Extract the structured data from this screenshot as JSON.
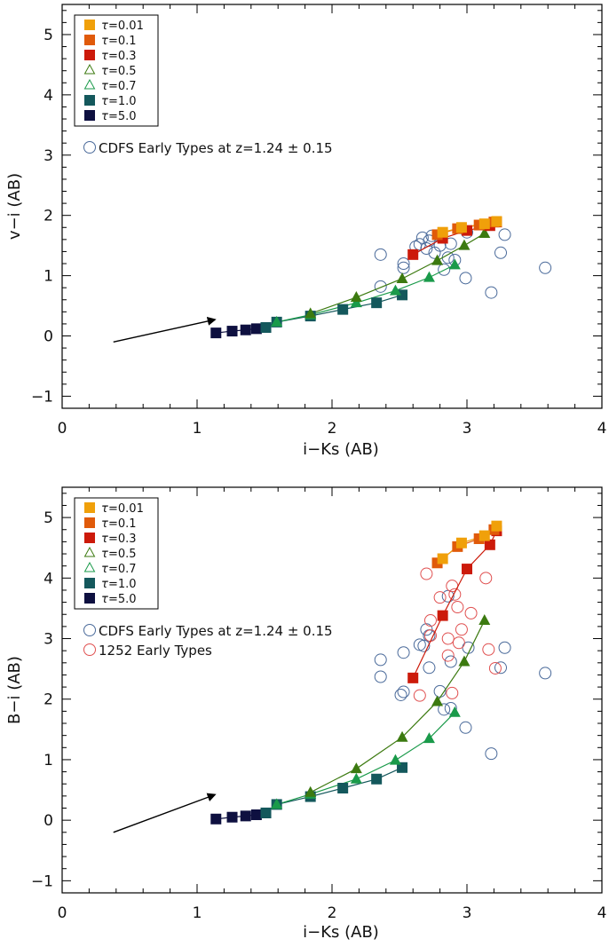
{
  "chart_data": [
    {
      "type": "scatter",
      "panel": "top",
      "xlabel": "i−Ks (AB)",
      "ylabel": "v−i (AB)",
      "xlim": [
        0,
        4
      ],
      "ylim": [
        -1.2,
        5.5
      ],
      "xticks": [
        0,
        1,
        2,
        3,
        4
      ],
      "yticks": [
        -1,
        0,
        1,
        2,
        3,
        4,
        5
      ],
      "legend": [
        {
          "symbol": "τ",
          "label": " =0.01",
          "color": "#f0a00a",
          "marker": "square"
        },
        {
          "symbol": "τ",
          "label": " =0.1",
          "color": "#e05a0a",
          "marker": "square"
        },
        {
          "symbol": "τ",
          "label": " =0.3",
          "color": "#cc1a0a",
          "marker": "square"
        },
        {
          "symbol": "τ",
          "label": " =0.5",
          "color": "#3c7a10",
          "marker": "triangle-open"
        },
        {
          "symbol": "τ",
          "label": " =0.7",
          "color": "#1a9a4a",
          "marker": "triangle-open"
        },
        {
          "symbol": "τ",
          "label": " =1.0",
          "color": "#14585c",
          "marker": "square"
        },
        {
          "symbol": "τ",
          "label": " =5.0",
          "color": "#0e1040",
          "marker": "square"
        }
      ],
      "obs_legend": [
        {
          "label": "CDFS Early Types at z=1.24 ± 0.15",
          "color": "#4a6a9a"
        }
      ],
      "arrow": {
        "from": [
          0.38,
          -0.1
        ],
        "to": [
          1.13,
          0.27
        ]
      },
      "model_tracks": [
        {
          "name": "tau=5.0",
          "color": "#0e1040",
          "marker": "square",
          "x": [
            1.14,
            1.26,
            1.36,
            1.44,
            1.51
          ],
          "y": [
            0.05,
            0.08,
            0.1,
            0.12,
            0.14
          ]
        },
        {
          "name": "tau=1.0",
          "color": "#14585c",
          "marker": "square",
          "x": [
            1.51,
            1.59,
            1.84,
            2.08,
            2.33,
            2.52
          ],
          "y": [
            0.14,
            0.23,
            0.33,
            0.44,
            0.55,
            0.68
          ]
        },
        {
          "name": "tau=0.7",
          "color": "#1a9a4a",
          "marker": "triangle",
          "x": [
            1.59,
            1.84,
            2.18,
            2.47,
            2.72,
            2.91
          ],
          "y": [
            0.23,
            0.35,
            0.55,
            0.75,
            0.97,
            1.18
          ]
        },
        {
          "name": "tau=0.5",
          "color": "#3c7a10",
          "marker": "triangle",
          "x": [
            1.84,
            2.18,
            2.52,
            2.78,
            2.98,
            3.13
          ],
          "y": [
            0.37,
            0.64,
            0.95,
            1.25,
            1.5,
            1.7
          ]
        },
        {
          "name": "tau=0.3",
          "color": "#cc1a0a",
          "marker": "square",
          "x": [
            2.6,
            2.82,
            3.0,
            3.17,
            3.22
          ],
          "y": [
            1.35,
            1.62,
            1.75,
            1.83,
            1.89
          ]
        },
        {
          "name": "tau=0.1",
          "color": "#e05a0a",
          "marker": "square",
          "x": [
            2.78,
            2.93,
            3.09,
            3.2
          ],
          "y": [
            1.68,
            1.78,
            1.84,
            1.89
          ]
        },
        {
          "name": "tau=0.01",
          "color": "#f0a00a",
          "marker": "square",
          "x": [
            2.82,
            2.96,
            3.13,
            3.22
          ],
          "y": [
            1.72,
            1.8,
            1.86,
            1.9
          ]
        }
      ],
      "observed": [
        {
          "name": "CDFS Early Types",
          "color": "#4a6a9a",
          "x": [
            2.36,
            2.53,
            2.53,
            2.65,
            2.67,
            2.7,
            2.72,
            2.76,
            2.8,
            2.83,
            2.88,
            2.91,
            2.99,
            3.0,
            3.18,
            3.25,
            3.28,
            3.58,
            2.36,
            2.62,
            2.74,
            2.86
          ],
          "y": [
            1.35,
            1.2,
            1.13,
            1.52,
            1.63,
            1.45,
            1.58,
            1.38,
            1.5,
            1.1,
            1.53,
            1.26,
            0.96,
            1.72,
            0.72,
            1.38,
            1.68,
            1.13,
            0.82,
            1.48,
            1.66,
            1.3
          ]
        }
      ]
    },
    {
      "type": "scatter",
      "panel": "bottom",
      "xlabel": "i−Ks (AB)",
      "ylabel": "B−i (AB)",
      "xlim": [
        0,
        4
      ],
      "ylim": [
        -1.2,
        5.5
      ],
      "xticks": [
        0,
        1,
        2,
        3,
        4
      ],
      "yticks": [
        -1,
        0,
        1,
        2,
        3,
        4,
        5
      ],
      "legend": [
        {
          "symbol": "τ",
          "label": " =0.01",
          "color": "#f0a00a",
          "marker": "square"
        },
        {
          "symbol": "τ",
          "label": " =0.1",
          "color": "#e05a0a",
          "marker": "square"
        },
        {
          "symbol": "τ",
          "label": " =0.3",
          "color": "#cc1a0a",
          "marker": "square"
        },
        {
          "symbol": "τ",
          "label": " =0.5",
          "color": "#3c7a10",
          "marker": "triangle-open"
        },
        {
          "symbol": "τ",
          "label": " =0.7",
          "color": "#1a9a4a",
          "marker": "triangle-open"
        },
        {
          "symbol": "τ",
          "label": " =1.0",
          "color": "#14585c",
          "marker": "square"
        },
        {
          "symbol": "τ",
          "label": " =5.0",
          "color": "#0e1040",
          "marker": "square"
        }
      ],
      "obs_legend": [
        {
          "label": "CDFS Early Types at z=1.24 ± 0.15",
          "color": "#4a6a9a"
        },
        {
          "label": "1252 Early Types",
          "color": "#e05050"
        }
      ],
      "arrow": {
        "from": [
          0.38,
          -0.2
        ],
        "to": [
          1.13,
          0.42
        ]
      },
      "model_tracks": [
        {
          "name": "tau=5.0",
          "color": "#0e1040",
          "marker": "square",
          "x": [
            1.14,
            1.26,
            1.36,
            1.44,
            1.51
          ],
          "y": [
            0.02,
            0.05,
            0.07,
            0.09,
            0.12
          ]
        },
        {
          "name": "tau=1.0",
          "color": "#14585c",
          "marker": "square",
          "x": [
            1.51,
            1.59,
            1.84,
            2.08,
            2.33,
            2.52
          ],
          "y": [
            0.12,
            0.26,
            0.39,
            0.53,
            0.68,
            0.87
          ]
        },
        {
          "name": "tau=0.7",
          "color": "#1a9a4a",
          "marker": "triangle",
          "x": [
            1.59,
            1.84,
            2.18,
            2.47,
            2.72,
            2.91
          ],
          "y": [
            0.26,
            0.43,
            0.68,
            0.99,
            1.35,
            1.78
          ]
        },
        {
          "name": "tau=0.5",
          "color": "#3c7a10",
          "marker": "triangle",
          "x": [
            1.84,
            2.18,
            2.52,
            2.78,
            2.98,
            3.13
          ],
          "y": [
            0.46,
            0.85,
            1.37,
            1.96,
            2.62,
            3.3
          ]
        },
        {
          "name": "tau=0.3",
          "color": "#cc1a0a",
          "marker": "square",
          "x": [
            2.6,
            2.82,
            3.0,
            3.17,
            3.22
          ],
          "y": [
            2.35,
            3.38,
            4.15,
            4.55,
            4.78
          ]
        },
        {
          "name": "tau=0.1",
          "color": "#e05a0a",
          "marker": "square",
          "x": [
            2.78,
            2.93,
            3.09,
            3.2
          ],
          "y": [
            4.25,
            4.52,
            4.65,
            4.8
          ]
        },
        {
          "name": "tau=0.01",
          "color": "#f0a00a",
          "marker": "square",
          "x": [
            2.82,
            2.96,
            3.13,
            3.22
          ],
          "y": [
            4.32,
            4.58,
            4.7,
            4.86
          ]
        }
      ],
      "observed": [
        {
          "name": "CDFS Early Types",
          "color": "#4a6a9a",
          "x": [
            2.36,
            2.36,
            2.53,
            2.53,
            2.51,
            2.65,
            2.7,
            2.72,
            2.72,
            2.8,
            2.83,
            2.86,
            2.88,
            2.99,
            3.01,
            3.18,
            3.25,
            3.28,
            3.58,
            2.68,
            2.88
          ],
          "y": [
            2.65,
            2.37,
            2.77,
            2.12,
            2.07,
            2.9,
            3.15,
            3.05,
            2.52,
            2.13,
            1.83,
            3.7,
            2.62,
            1.53,
            2.85,
            1.1,
            2.52,
            2.85,
            2.43,
            2.88,
            1.85
          ]
        },
        {
          "name": "1252 Early Types",
          "color": "#e05050",
          "x": [
            2.7,
            2.73,
            2.65,
            2.8,
            2.89,
            2.91,
            2.93,
            2.86,
            2.96,
            3.03,
            2.86,
            2.89,
            3.14,
            3.21,
            3.16,
            2.94,
            2.73
          ],
          "y": [
            4.07,
            3.05,
            2.06,
            3.68,
            3.87,
            3.73,
            3.52,
            3.0,
            3.15,
            3.42,
            2.72,
            2.1,
            4.0,
            2.51,
            2.82,
            2.93,
            3.3
          ]
        }
      ]
    }
  ]
}
